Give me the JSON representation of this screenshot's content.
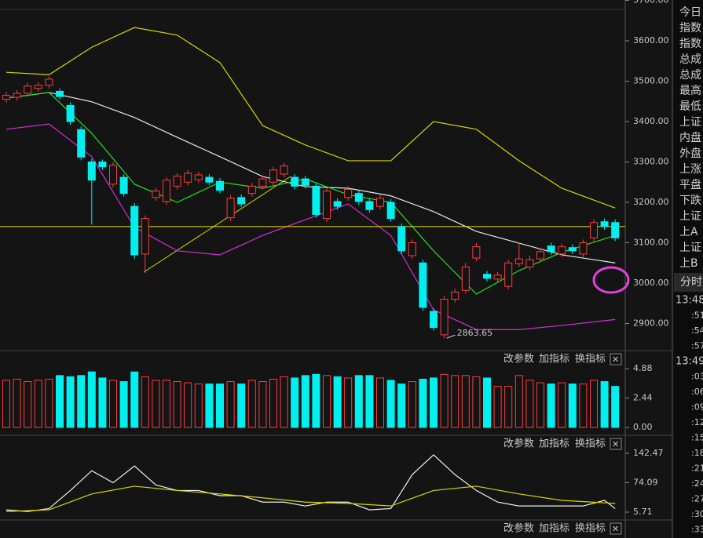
{
  "chart_data": [
    {
      "type": "candlestick",
      "open": [
        3455,
        3460,
        3470,
        3482,
        3490,
        3475,
        3440,
        3380,
        3300,
        3300,
        3245,
        3262,
        3190,
        3072,
        3212,
        3202,
        3240,
        3250,
        3256,
        3262,
        3252,
        3162,
        3212,
        3222,
        3240,
        3250,
        3270,
        3262,
        3258,
        3240,
        3160,
        3202,
        3212,
        3222,
        3202,
        3190,
        3200,
        3140,
        3068,
        3050,
        2930,
        2872,
        2960,
        2982,
        3062,
        3022,
        3010,
        2992,
        3048,
        3040,
        3060,
        3092,
        3072,
        3088,
        3072,
        3112,
        3152,
        3150
      ],
      "high": [
        3473,
        3478,
        3496,
        3498,
        3512,
        3482,
        3448,
        3388,
        3308,
        3306,
        3300,
        3270,
        3198,
        3168,
        3236,
        3262,
        3272,
        3280,
        3276,
        3270,
        3260,
        3218,
        3220,
        3248,
        3266,
        3288,
        3298,
        3270,
        3266,
        3248,
        3236,
        3210,
        3240,
        3230,
        3210,
        3218,
        3208,
        3148,
        3108,
        3058,
        2938,
        2968,
        2986,
        3050,
        3100,
        3030,
        3028,
        3058,
        3100,
        3068,
        3086,
        3100,
        3098,
        3096,
        3108,
        3158,
        3160,
        3158
      ],
      "low": [
        3447,
        3452,
        3462,
        3474,
        3482,
        3454,
        3392,
        3304,
        3145,
        3280,
        3237,
        3214,
        3060,
        3025,
        3204,
        3194,
        3232,
        3242,
        3248,
        3242,
        3222,
        3154,
        3188,
        3214,
        3232,
        3242,
        3262,
        3232,
        3234,
        3162,
        3152,
        3182,
        3204,
        3194,
        3174,
        3182,
        3152,
        3072,
        3060,
        2932,
        2882,
        2863.65,
        2952,
        2974,
        3054,
        3004,
        3002,
        2984,
        3040,
        3032,
        3052,
        3070,
        3064,
        3072,
        3064,
        3104,
        3132,
        3104
      ],
      "close": [
        3465,
        3470,
        3488,
        3490,
        3505,
        3462,
        3400,
        3312,
        3255,
        3288,
        3292,
        3222,
        3070,
        3160,
        3228,
        3255,
        3265,
        3272,
        3268,
        3250,
        3230,
        3210,
        3196,
        3240,
        3258,
        3280,
        3290,
        3240,
        3242,
        3170,
        3228,
        3190,
        3232,
        3202,
        3182,
        3210,
        3160,
        3080,
        3100,
        2940,
        2890,
        2960,
        2978,
        3040,
        3090,
        3012,
        3020,
        3050,
        3060,
        3058,
        3078,
        3078,
        3090,
        3080,
        3100,
        3150,
        3140,
        3112
      ],
      "up_color": "#ff3c3c",
      "down_color": "#00f0f0",
      "ylim": [
        2833,
        3701
      ],
      "yticks": [
        {
          "value": 2900,
          "label": "2900.00"
        },
        {
          "value": 3000,
          "label": "3000.00"
        },
        {
          "value": 3100,
          "label": "3100.00"
        },
        {
          "value": 3200,
          "label": "3200.00"
        },
        {
          "value": 3300,
          "label": "3300.00"
        },
        {
          "value": 3400,
          "label": "3400.00"
        },
        {
          "value": 3500,
          "label": "3500.00"
        },
        {
          "value": 3600,
          "label": "3600.00"
        },
        {
          "value": 3700,
          "label": "3700.00"
        }
      ],
      "lines": [
        {
          "color": "#d8d800",
          "x": [
            0,
            4,
            8,
            12,
            16,
            20,
            24,
            28,
            32,
            36,
            40,
            44,
            48,
            52,
            57
          ],
          "values": [
            3522,
            3516,
            3584,
            3633,
            3614,
            3546,
            3390,
            3342,
            3303,
            3303,
            3400,
            3381,
            3303,
            3235,
            3186
          ]
        },
        {
          "color": "#e8e8e8",
          "x": [
            0,
            4,
            8,
            12,
            16,
            20,
            24,
            28,
            32,
            36,
            40,
            44,
            48,
            52,
            57
          ],
          "values": [
            3458,
            3472,
            3449,
            3410,
            3361,
            3313,
            3264,
            3239,
            3235,
            3216,
            3177,
            3128,
            3099,
            3070,
            3050
          ]
        },
        {
          "color": "#d030d0",
          "x": [
            0,
            4,
            8,
            12,
            16,
            20,
            24,
            28,
            32,
            36,
            40,
            44,
            48,
            52,
            57
          ],
          "values": [
            3381,
            3394,
            3313,
            3138,
            3080,
            3070,
            3118,
            3157,
            3196,
            3118,
            2934,
            2885,
            2885,
            2895,
            2910
          ]
        },
        {
          "color": "#22dd22",
          "x": [
            0,
            4,
            8,
            12,
            16,
            20,
            24,
            28,
            32,
            36,
            40,
            44,
            48,
            52,
            57
          ],
          "values": [
            3458,
            3472,
            3371,
            3245,
            3200,
            3250,
            3235,
            3258,
            3219,
            3200,
            3080,
            2973,
            3031,
            3076,
            3118
          ]
        }
      ],
      "hline": 3140,
      "hline_color": "#e8e800",
      "annotation": "2863.65"
    },
    {
      "type": "bar",
      "values": [
        3.9,
        4.0,
        3.8,
        3.9,
        4.0,
        4.3,
        4.2,
        4.3,
        4.6,
        4.1,
        3.9,
        3.8,
        4.6,
        4.2,
        3.9,
        3.9,
        3.8,
        3.7,
        3.6,
        3.6,
        3.6,
        3.8,
        3.6,
        3.9,
        3.8,
        4.0,
        4.2,
        4.1,
        4.3,
        4.4,
        4.3,
        4.2,
        4.1,
        4.3,
        4.3,
        4.1,
        3.9,
        3.6,
        3.8,
        4.0,
        4.1,
        4.4,
        4.3,
        4.3,
        4.2,
        4.1,
        3.4,
        3.4,
        4.3,
        3.9,
        3.7,
        3.6,
        3.7,
        3.6,
        3.6,
        3.9,
        3.8,
        3.4
      ],
      "ylim": [
        -0.52,
        5.2
      ],
      "yticks": [
        {
          "value": 0,
          "label": "0.00"
        },
        2.44,
        4.88
      ]
    },
    {
      "type": "line",
      "series": [
        {
          "color": "#f0f0f0",
          "x": [
            0,
            2,
            4,
            6,
            8,
            10,
            12,
            14,
            16,
            18,
            20,
            22,
            24,
            26,
            28,
            30,
            32,
            34,
            36,
            38,
            40,
            42,
            44,
            46,
            48,
            50,
            52,
            54,
            56,
            57
          ],
          "values": [
            11,
            7,
            14,
            56,
            102,
            74,
            113,
            69,
            56,
            56,
            44,
            44,
            29,
            29,
            20,
            29,
            29,
            11,
            14,
            93,
            139,
            93,
            56,
            29,
            20,
            20,
            20,
            20,
            33,
            14
          ]
        },
        {
          "color": "#d8d800",
          "x": [
            0,
            4,
            8,
            12,
            16,
            20,
            24,
            28,
            32,
            36,
            40,
            44,
            48,
            52,
            57
          ],
          "values": [
            7,
            11,
            48,
            66,
            56,
            48,
            39,
            29,
            26,
            20,
            56,
            66,
            48,
            33,
            26
          ]
        }
      ],
      "ylim": [
        -1.6,
        166.2
      ],
      "yticks": [
        5.71,
        74.09,
        142.47
      ]
    }
  ],
  "toolbar": {
    "buttons": [
      "改参数",
      "加指标",
      "换指标"
    ],
    "close": "✕"
  },
  "side_panel": {
    "labels": [
      "今日",
      "指数",
      "指数",
      "总成",
      "总成",
      "最高",
      "最低",
      "上证",
      "内盘",
      "外盘",
      "上涨",
      "平盘",
      "下跌",
      "上证",
      "上A",
      "上证",
      "上B"
    ],
    "tab": "分时",
    "times": [
      "13:48",
      ":51",
      ":54",
      ":57",
      "13:49",
      ":03",
      ":06",
      ":09",
      ":12",
      ":15",
      ":18",
      ":21",
      ":24",
      ":27",
      ":30",
      ":33"
    ]
  }
}
